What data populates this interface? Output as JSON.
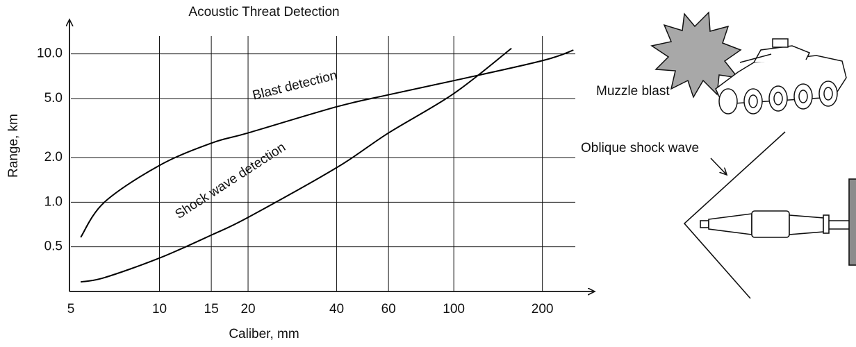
{
  "chart_data": {
    "type": "line",
    "title": "Acoustic Threat Detection",
    "x_label": "Caliber, mm",
    "y_label": "Range, km",
    "log_x": true,
    "log_y": true,
    "grid": true,
    "xlim": [
      5,
      290
    ],
    "ylim": [
      0.25,
      16
    ],
    "xticks": [
      5,
      10,
      15,
      20,
      40,
      60,
      100,
      200
    ],
    "yticks": [
      0.5,
      {
        "value": 1,
        "label": "1.0"
      },
      {
        "value": 2,
        "label": "2.0"
      },
      {
        "value": 5,
        "label": "5.0"
      },
      {
        "value": 10,
        "label": "10.0"
      }
    ],
    "series": [
      {
        "name": "Blast detection",
        "color": "#000000",
        "x": [
          5.4,
          6.5,
          10,
          15,
          20,
          40,
          60,
          100,
          200,
          255
        ],
        "values": [
          0.58,
          1.0,
          1.77,
          2.5,
          2.93,
          4.4,
          5.3,
          6.6,
          9.0,
          10.6
        ]
      },
      {
        "name": "Shock wave detection",
        "color": "#000000",
        "x": [
          5.4,
          6.5,
          10,
          15,
          20,
          40,
          60,
          100,
          157
        ],
        "values": [
          0.29,
          0.31,
          0.42,
          0.6,
          0.79,
          1.71,
          2.93,
          5.4,
          10.9
        ]
      }
    ]
  },
  "illustration": {
    "labels": [
      "Muzzle blast",
      "Oblique shock wave"
    ]
  }
}
